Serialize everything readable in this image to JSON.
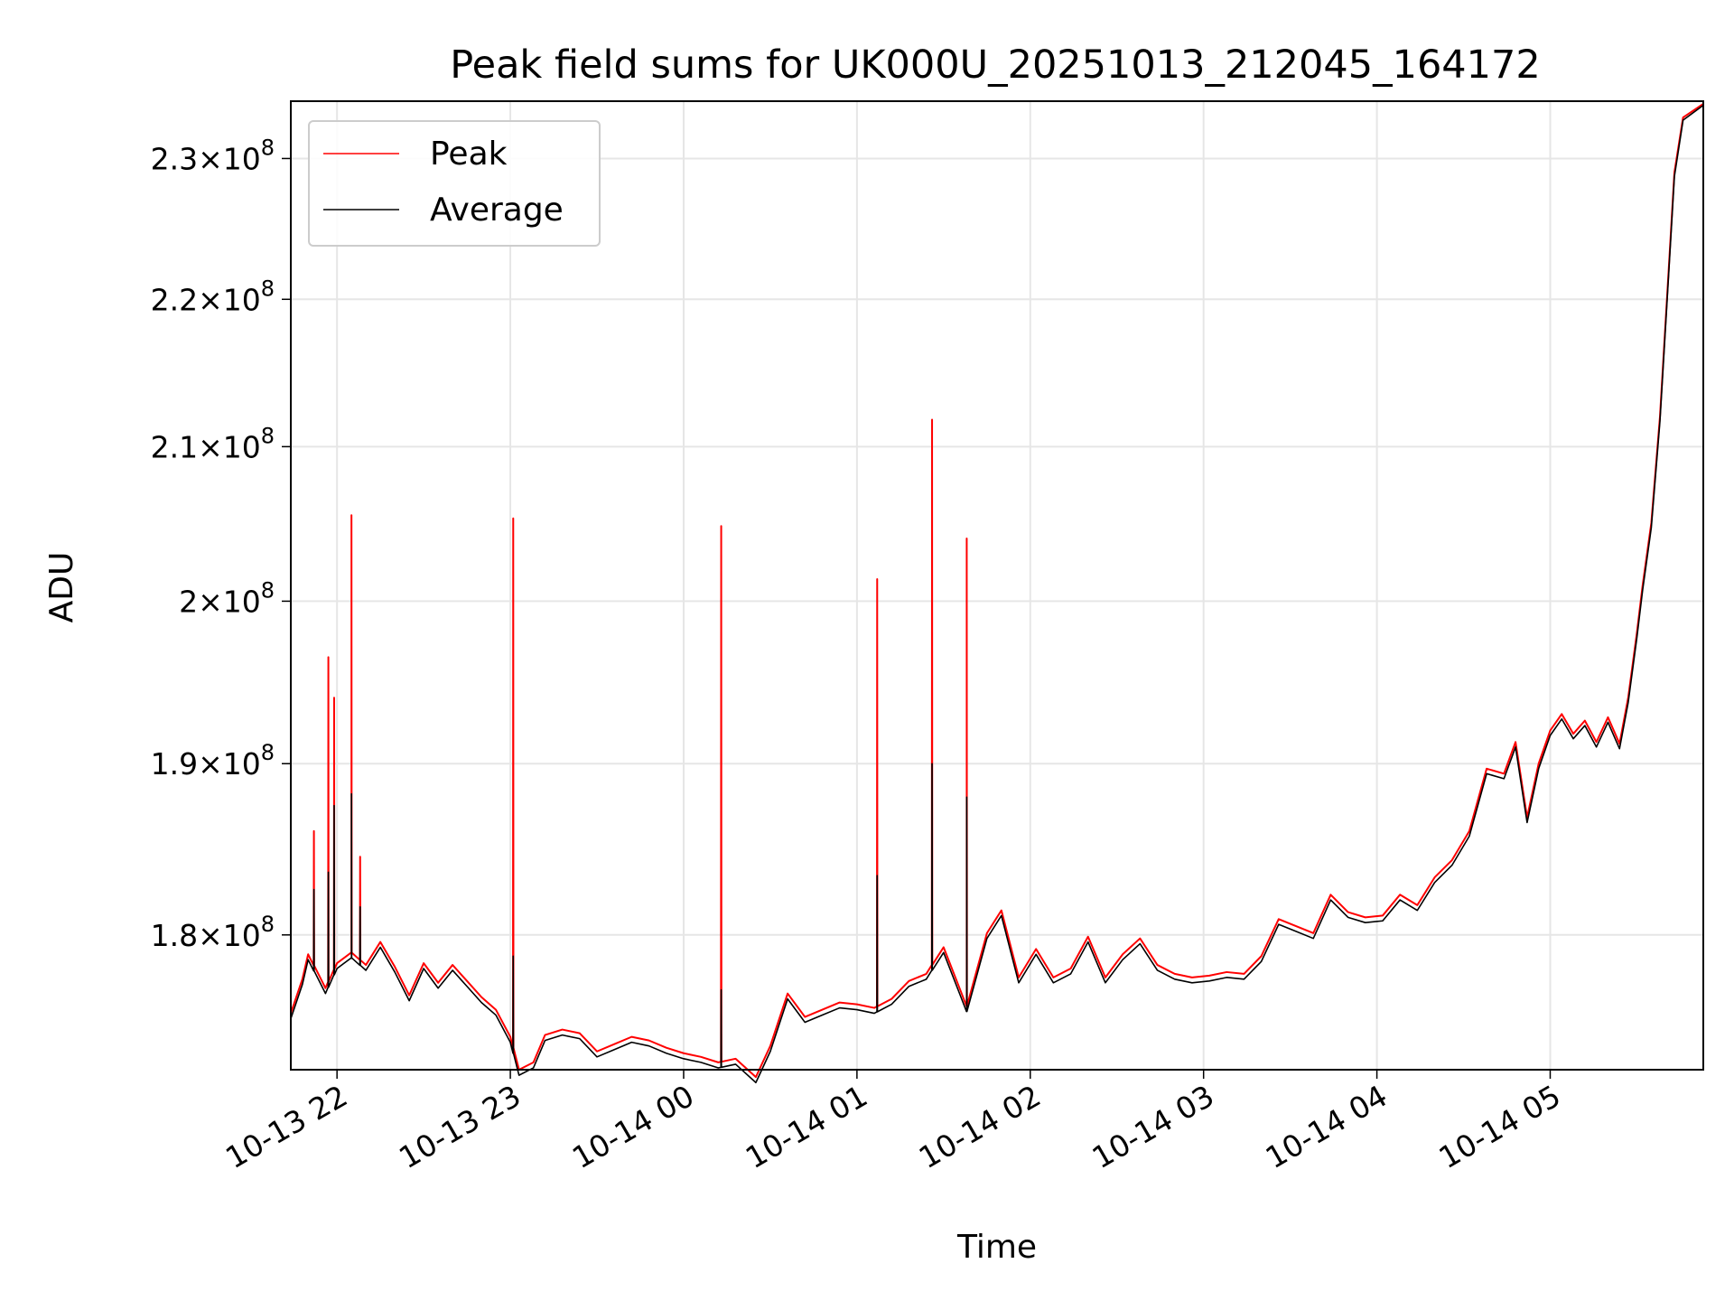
{
  "chart_data": {
    "type": "line",
    "title": "Peak field sums for UK000U_20251013_212045_164172",
    "xlabel": "Time",
    "ylabel": "ADU",
    "x_range": [
      "2025-10-13 21:44",
      "2025-10-14 05:53"
    ],
    "ylim": [
      172500000,
      234200000
    ],
    "y_scale": "log",
    "grid": true,
    "legend_position": "top-left",
    "x_ticks": [
      {
        "time": "2025-10-13 22:00",
        "label": "10-13 22"
      },
      {
        "time": "2025-10-13 23:00",
        "label": "10-13 23"
      },
      {
        "time": "2025-10-14 00:00",
        "label": "10-14 00"
      },
      {
        "time": "2025-10-14 01:00",
        "label": "10-14 01"
      },
      {
        "time": "2025-10-14 02:00",
        "label": "10-14 02"
      },
      {
        "time": "2025-10-14 03:00",
        "label": "10-14 03"
      },
      {
        "time": "2025-10-14 04:00",
        "label": "10-14 04"
      },
      {
        "time": "2025-10-14 05:00",
        "label": "10-14 05"
      }
    ],
    "y_ticks": [
      {
        "value": 180000000,
        "mantissa": "1.8",
        "exponent": "8"
      },
      {
        "value": 190000000,
        "mantissa": "1.9",
        "exponent": "8"
      },
      {
        "value": 200000000,
        "mantissa": "2",
        "exponent": "8"
      },
      {
        "value": 210000000,
        "mantissa": "2.1",
        "exponent": "8"
      },
      {
        "value": 220000000,
        "mantissa": "2.2",
        "exponent": "8"
      },
      {
        "value": 230000000,
        "mantissa": "2.3",
        "exponent": "8"
      }
    ],
    "series": [
      {
        "name": "Peak",
        "color": "#ff0000",
        "points": [
          [
            "2025-10-13 21:44",
            175600000
          ],
          [
            "2025-10-13 21:48",
            177500000
          ],
          [
            "2025-10-13 21:50",
            178900000
          ],
          [
            "2025-10-13 21:56",
            177000000
          ],
          [
            "2025-10-13 22:00",
            178400000
          ],
          [
            "2025-10-13 22:05",
            179000000
          ],
          [
            "2025-10-13 22:10",
            178300000
          ],
          [
            "2025-10-13 22:15",
            179600000
          ],
          [
            "2025-10-13 22:20",
            178200000
          ],
          [
            "2025-10-13 22:25",
            176600000
          ],
          [
            "2025-10-13 22:30",
            178400000
          ],
          [
            "2025-10-13 22:35",
            177300000
          ],
          [
            "2025-10-13 22:40",
            178300000
          ],
          [
            "2025-10-13 22:45",
            177400000
          ],
          [
            "2025-10-13 22:50",
            176500000
          ],
          [
            "2025-10-13 22:55",
            175800000
          ],
          [
            "2025-10-13 23:00",
            174300000
          ],
          [
            "2025-10-13 23:03",
            172500000
          ],
          [
            "2025-10-13 23:08",
            172900000
          ],
          [
            "2025-10-13 23:12",
            174400000
          ],
          [
            "2025-10-13 23:18",
            174700000
          ],
          [
            "2025-10-13 23:24",
            174500000
          ],
          [
            "2025-10-13 23:30",
            173500000
          ],
          [
            "2025-10-13 23:36",
            173900000
          ],
          [
            "2025-10-13 23:42",
            174300000
          ],
          [
            "2025-10-13 23:48",
            174100000
          ],
          [
            "2025-10-13 23:54",
            173700000
          ],
          [
            "2025-10-14 00:00",
            173400000
          ],
          [
            "2025-10-14 00:06",
            173200000
          ],
          [
            "2025-10-14 00:12",
            172900000
          ],
          [
            "2025-10-14 00:18",
            173100000
          ],
          [
            "2025-10-14 00:25",
            172100000
          ],
          [
            "2025-10-14 00:30",
            173800000
          ],
          [
            "2025-10-14 00:36",
            176700000
          ],
          [
            "2025-10-14 00:42",
            175400000
          ],
          [
            "2025-10-14 00:48",
            175800000
          ],
          [
            "2025-10-14 00:54",
            176200000
          ],
          [
            "2025-10-14 01:00",
            176100000
          ],
          [
            "2025-10-14 01:06",
            175900000
          ],
          [
            "2025-10-14 01:12",
            176400000
          ],
          [
            "2025-10-14 01:18",
            177400000
          ],
          [
            "2025-10-14 01:24",
            177800000
          ],
          [
            "2025-10-14 01:30",
            179300000
          ],
          [
            "2025-10-14 01:36",
            176800000
          ],
          [
            "2025-10-14 01:38",
            176000000
          ],
          [
            "2025-10-14 01:45",
            180100000
          ],
          [
            "2025-10-14 01:50",
            181400000
          ],
          [
            "2025-10-14 01:56",
            177600000
          ],
          [
            "2025-10-14 02:02",
            179200000
          ],
          [
            "2025-10-14 02:08",
            177600000
          ],
          [
            "2025-10-14 02:14",
            178100000
          ],
          [
            "2025-10-14 02:20",
            179900000
          ],
          [
            "2025-10-14 02:26",
            177600000
          ],
          [
            "2025-10-14 02:32",
            178900000
          ],
          [
            "2025-10-14 02:38",
            179800000
          ],
          [
            "2025-10-14 02:44",
            178300000
          ],
          [
            "2025-10-14 02:50",
            177800000
          ],
          [
            "2025-10-14 02:56",
            177600000
          ],
          [
            "2025-10-14 03:02",
            177700000
          ],
          [
            "2025-10-14 03:08",
            177900000
          ],
          [
            "2025-10-14 03:14",
            177800000
          ],
          [
            "2025-10-14 03:20",
            178800000
          ],
          [
            "2025-10-14 03:26",
            180900000
          ],
          [
            "2025-10-14 03:32",
            180500000
          ],
          [
            "2025-10-14 03:38",
            180100000
          ],
          [
            "2025-10-14 03:44",
            182300000
          ],
          [
            "2025-10-14 03:50",
            181300000
          ],
          [
            "2025-10-14 03:56",
            181000000
          ],
          [
            "2025-10-14 04:02",
            181100000
          ],
          [
            "2025-10-14 04:08",
            182300000
          ],
          [
            "2025-10-14 04:14",
            181700000
          ],
          [
            "2025-10-14 04:20",
            183300000
          ],
          [
            "2025-10-14 04:26",
            184300000
          ],
          [
            "2025-10-14 04:32",
            186000000
          ],
          [
            "2025-10-14 04:38",
            189700000
          ],
          [
            "2025-10-14 04:44",
            189400000
          ],
          [
            "2025-10-14 04:48",
            191300000
          ],
          [
            "2025-10-14 04:52",
            186800000
          ],
          [
            "2025-10-14 04:56",
            190000000
          ],
          [
            "2025-10-14 05:00",
            192000000
          ],
          [
            "2025-10-14 05:04",
            193000000
          ],
          [
            "2025-10-14 05:08",
            191800000
          ],
          [
            "2025-10-14 05:12",
            192600000
          ],
          [
            "2025-10-14 05:16",
            191300000
          ],
          [
            "2025-10-14 05:20",
            192800000
          ],
          [
            "2025-10-14 05:24",
            191200000
          ],
          [
            "2025-10-14 05:27",
            194000000
          ],
          [
            "2025-10-14 05:30",
            198000000
          ],
          [
            "2025-10-14 05:32",
            201000000
          ],
          [
            "2025-10-14 05:35",
            205000000
          ],
          [
            "2025-10-14 05:38",
            212000000
          ],
          [
            "2025-10-14 05:41",
            222000000
          ],
          [
            "2025-10-14 05:43",
            229000000
          ],
          [
            "2025-10-14 05:46",
            233000000
          ],
          [
            "2025-10-14 05:53",
            234000000
          ]
        ]
      },
      {
        "name": "Average",
        "color": "#000000",
        "points": [
          [
            "2025-10-13 21:44",
            175300000
          ],
          [
            "2025-10-13 21:48",
            177200000
          ],
          [
            "2025-10-13 21:50",
            178600000
          ],
          [
            "2025-10-13 21:56",
            176700000
          ],
          [
            "2025-10-13 22:00",
            178100000
          ],
          [
            "2025-10-13 22:05",
            178700000
          ],
          [
            "2025-10-13 22:10",
            178000000
          ],
          [
            "2025-10-13 22:15",
            179300000
          ],
          [
            "2025-10-13 22:20",
            177900000
          ],
          [
            "2025-10-13 22:25",
            176300000
          ],
          [
            "2025-10-13 22:30",
            178100000
          ],
          [
            "2025-10-13 22:35",
            177000000
          ],
          [
            "2025-10-13 22:40",
            178000000
          ],
          [
            "2025-10-13 22:45",
            177100000
          ],
          [
            "2025-10-13 22:50",
            176200000
          ],
          [
            "2025-10-13 22:55",
            175500000
          ],
          [
            "2025-10-13 23:00",
            174000000
          ],
          [
            "2025-10-13 23:03",
            172200000
          ],
          [
            "2025-10-13 23:08",
            172600000
          ],
          [
            "2025-10-13 23:12",
            174100000
          ],
          [
            "2025-10-13 23:18",
            174400000
          ],
          [
            "2025-10-13 23:24",
            174200000
          ],
          [
            "2025-10-13 23:30",
            173200000
          ],
          [
            "2025-10-13 23:36",
            173600000
          ],
          [
            "2025-10-13 23:42",
            174000000
          ],
          [
            "2025-10-13 23:48",
            173800000
          ],
          [
            "2025-10-13 23:54",
            173400000
          ],
          [
            "2025-10-14 00:00",
            173100000
          ],
          [
            "2025-10-14 00:06",
            172900000
          ],
          [
            "2025-10-14 00:12",
            172600000
          ],
          [
            "2025-10-14 00:18",
            172800000
          ],
          [
            "2025-10-14 00:25",
            171800000
          ],
          [
            "2025-10-14 00:30",
            173500000
          ],
          [
            "2025-10-14 00:36",
            176400000
          ],
          [
            "2025-10-14 00:42",
            175100000
          ],
          [
            "2025-10-14 00:48",
            175500000
          ],
          [
            "2025-10-14 00:54",
            175900000
          ],
          [
            "2025-10-14 01:00",
            175800000
          ],
          [
            "2025-10-14 01:06",
            175600000
          ],
          [
            "2025-10-14 01:12",
            176100000
          ],
          [
            "2025-10-14 01:18",
            177100000
          ],
          [
            "2025-10-14 01:24",
            177500000
          ],
          [
            "2025-10-14 01:30",
            179000000
          ],
          [
            "2025-10-14 01:36",
            176500000
          ],
          [
            "2025-10-14 01:38",
            175700000
          ],
          [
            "2025-10-14 01:45",
            179800000
          ],
          [
            "2025-10-14 01:50",
            181100000
          ],
          [
            "2025-10-14 01:56",
            177300000
          ],
          [
            "2025-10-14 02:02",
            178900000
          ],
          [
            "2025-10-14 02:08",
            177300000
          ],
          [
            "2025-10-14 02:14",
            177800000
          ],
          [
            "2025-10-14 02:20",
            179600000
          ],
          [
            "2025-10-14 02:26",
            177300000
          ],
          [
            "2025-10-14 02:32",
            178600000
          ],
          [
            "2025-10-14 02:38",
            179500000
          ],
          [
            "2025-10-14 02:44",
            178000000
          ],
          [
            "2025-10-14 02:50",
            177500000
          ],
          [
            "2025-10-14 02:56",
            177300000
          ],
          [
            "2025-10-14 03:02",
            177400000
          ],
          [
            "2025-10-14 03:08",
            177600000
          ],
          [
            "2025-10-14 03:14",
            177500000
          ],
          [
            "2025-10-14 03:20",
            178500000
          ],
          [
            "2025-10-14 03:26",
            180600000
          ],
          [
            "2025-10-14 03:32",
            180200000
          ],
          [
            "2025-10-14 03:38",
            179800000
          ],
          [
            "2025-10-14 03:44",
            182000000
          ],
          [
            "2025-10-14 03:50",
            181000000
          ],
          [
            "2025-10-14 03:56",
            180700000
          ],
          [
            "2025-10-14 04:02",
            180800000
          ],
          [
            "2025-10-14 04:08",
            182000000
          ],
          [
            "2025-10-14 04:14",
            181400000
          ],
          [
            "2025-10-14 04:20",
            183000000
          ],
          [
            "2025-10-14 04:26",
            184000000
          ],
          [
            "2025-10-14 04:32",
            185700000
          ],
          [
            "2025-10-14 04:38",
            189400000
          ],
          [
            "2025-10-14 04:44",
            189100000
          ],
          [
            "2025-10-14 04:48",
            191000000
          ],
          [
            "2025-10-14 04:52",
            186500000
          ],
          [
            "2025-10-14 04:56",
            189700000
          ],
          [
            "2025-10-14 05:00",
            191700000
          ],
          [
            "2025-10-14 05:04",
            192700000
          ],
          [
            "2025-10-14 05:08",
            191500000
          ],
          [
            "2025-10-14 05:12",
            192300000
          ],
          [
            "2025-10-14 05:16",
            191000000
          ],
          [
            "2025-10-14 05:20",
            192500000
          ],
          [
            "2025-10-14 05:24",
            190900000
          ],
          [
            "2025-10-14 05:27",
            193700000
          ],
          [
            "2025-10-14 05:30",
            197700000
          ],
          [
            "2025-10-14 05:32",
            200700000
          ],
          [
            "2025-10-14 05:35",
            204700000
          ],
          [
            "2025-10-14 05:38",
            211700000
          ],
          [
            "2025-10-14 05:41",
            221700000
          ],
          [
            "2025-10-14 05:43",
            228700000
          ],
          [
            "2025-10-14 05:46",
            232800000
          ],
          [
            "2025-10-14 05:53",
            233900000
          ]
        ]
      }
    ],
    "spikes": [
      {
        "time": "2025-10-13 21:52",
        "peak": 186000000,
        "average": 182600000
      },
      {
        "time": "2025-10-13 21:57",
        "peak": 196500000,
        "average": 183600000
      },
      {
        "time": "2025-10-13 21:59",
        "peak": 194000000,
        "average": 187500000
      },
      {
        "time": "2025-10-13 22:05",
        "peak": 205500000,
        "average": 188200000
      },
      {
        "time": "2025-10-13 22:08",
        "peak": 184500000,
        "average": 181600000
      },
      {
        "time": "2025-10-13 23:01",
        "peak": 205300000,
        "average": 178800000
      },
      {
        "time": "2025-10-14 00:13",
        "peak": 204800000,
        "average": 176900000
      },
      {
        "time": "2025-10-14 01:07",
        "peak": 201400000,
        "average": 183400000
      },
      {
        "time": "2025-10-14 01:26",
        "peak": 211800000,
        "average": 190000000
      },
      {
        "time": "2025-10-14 01:38",
        "peak": 204000000,
        "average": 188000000
      }
    ]
  }
}
